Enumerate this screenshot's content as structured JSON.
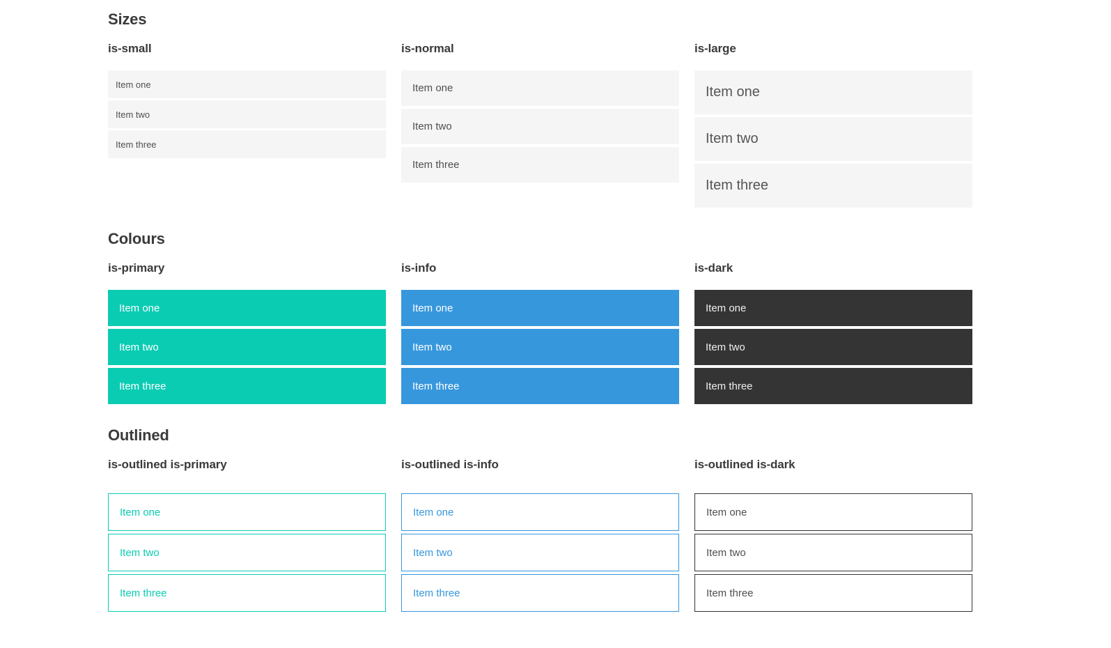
{
  "colors": {
    "primary": "#0accb3",
    "info": "#3797dd",
    "dark": "#343434",
    "item_bg": "#f5f5f5",
    "item_text": "#4f4f4f",
    "heading_text": "#3a3a3a",
    "on_color_text": "#ffffff",
    "dark_item_text": "#efefef"
  },
  "sections": [
    {
      "id": "sizes",
      "title": "Sizes",
      "groups": [
        {
          "label": "is-small",
          "variant": "size-small",
          "items": [
            "Item one",
            "Item two",
            "Item three"
          ]
        },
        {
          "label": "is-normal",
          "variant": "size-normal",
          "items": [
            "Item one",
            "Item two",
            "Item three"
          ]
        },
        {
          "label": "is-large",
          "variant": "size-large",
          "items": [
            "Item one",
            "Item two",
            "Item three"
          ]
        }
      ]
    },
    {
      "id": "colours",
      "title": "Colours",
      "groups": [
        {
          "label": "is-primary",
          "variant": "primary",
          "items": [
            "Item one",
            "Item two",
            "Item three"
          ]
        },
        {
          "label": "is-info",
          "variant": "info",
          "items": [
            "Item one",
            "Item two",
            "Item three"
          ]
        },
        {
          "label": "is-dark",
          "variant": "dark",
          "items": [
            "Item one",
            "Item two",
            "Item three"
          ]
        }
      ]
    },
    {
      "id": "outlined",
      "title": "Outlined",
      "groups": [
        {
          "label": "is-outlined is-primary",
          "variant": "outlined-primary",
          "items": [
            "Item one",
            "Item two",
            "Item three"
          ]
        },
        {
          "label": "is-outlined is-info",
          "variant": "outlined-info",
          "items": [
            "Item one",
            "Item two",
            "Item three"
          ]
        },
        {
          "label": "is-outlined is-dark",
          "variant": "outlined-dark",
          "items": [
            "Item one",
            "Item two",
            "Item three"
          ]
        }
      ]
    }
  ]
}
